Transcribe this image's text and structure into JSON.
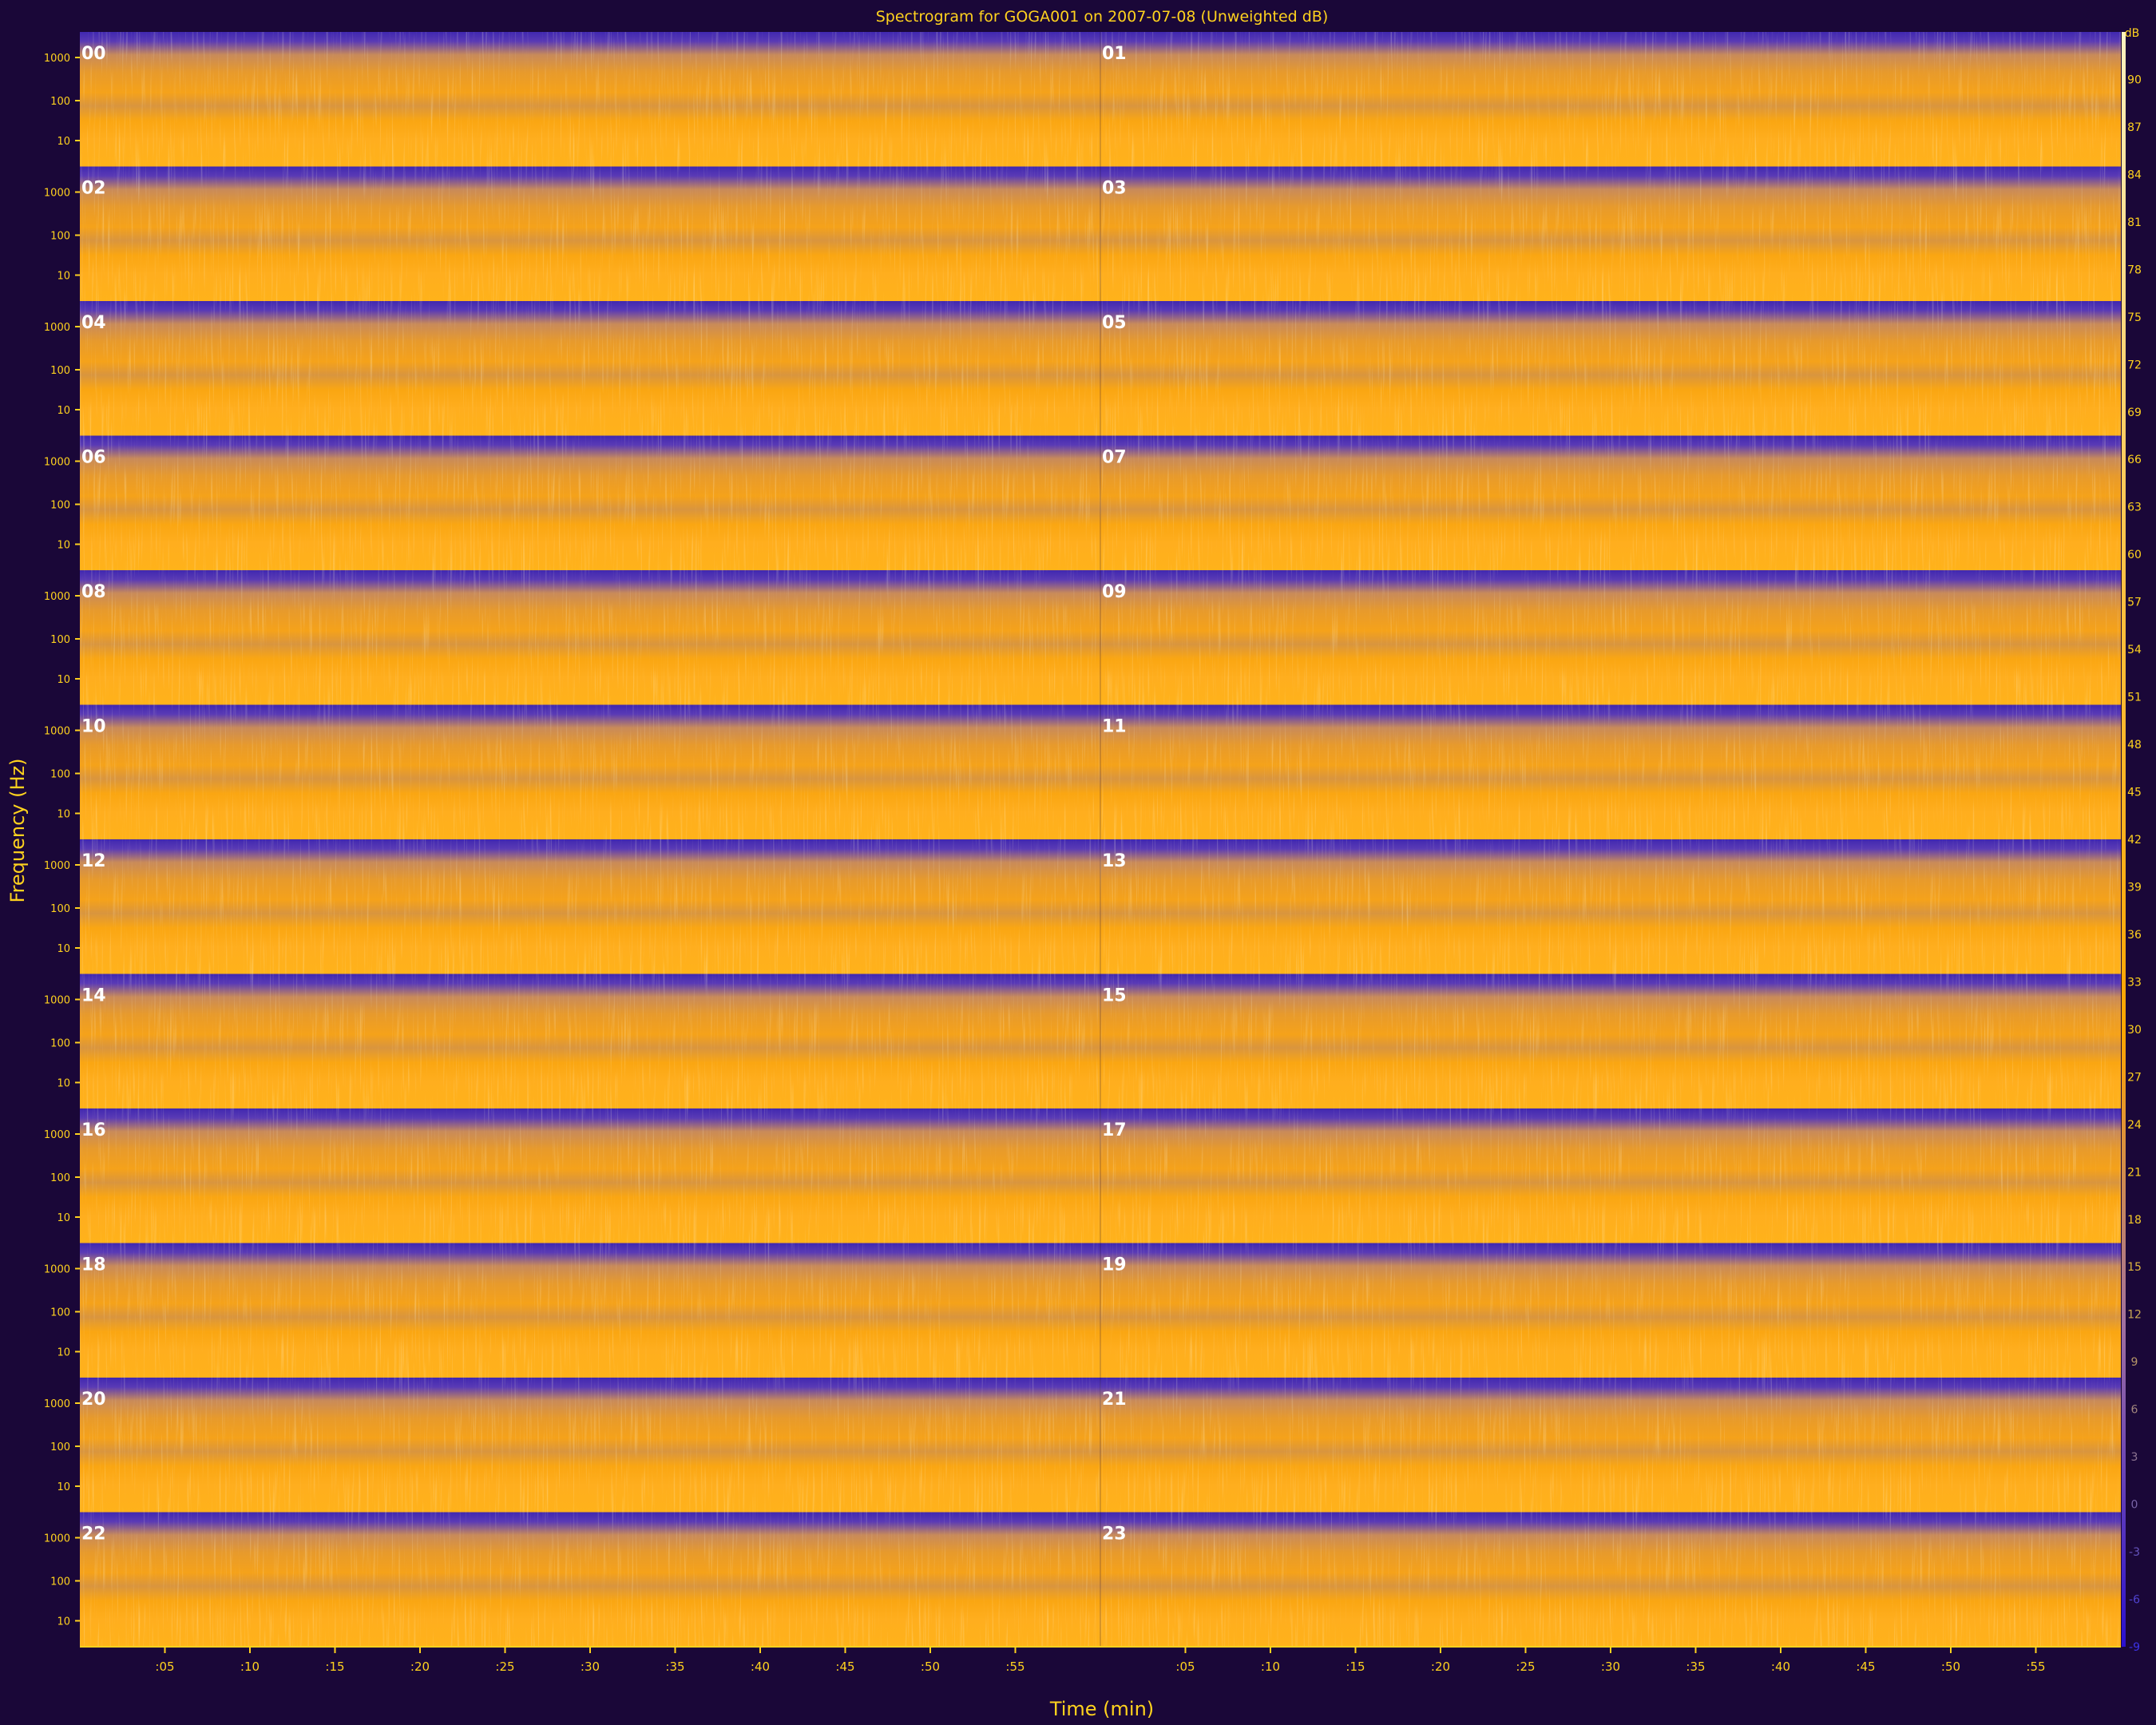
{
  "chart_data": {
    "type": "heatmap",
    "title": "Spectrogram for GOGA001 on 2007-07-08 (Unweighted dB)",
    "xlabel": "Time (min)",
    "ylabel": "Frequency (Hz)",
    "colorbar_label": "dB",
    "colorbar_range": [
      -9,
      93
    ],
    "colorbar_ticks": [
      "90",
      "87",
      "84",
      "81",
      "78",
      "75",
      "72",
      "69",
      "66",
      "63",
      "60",
      "57",
      "54",
      "51",
      "48",
      "45",
      "42",
      "39",
      "36",
      "33",
      "30",
      "27",
      "24",
      "21",
      "18",
      "15",
      "12",
      "9",
      "6",
      "3",
      "0",
      "-3",
      "-6",
      "-9"
    ],
    "x_tick_labels": [
      ":05",
      ":10",
      ":15",
      ":20",
      ":25",
      ":30",
      ":35",
      ":40",
      ":45",
      ":50",
      ":55"
    ],
    "y_tick_labels": [
      "1000",
      "100",
      "10"
    ],
    "hours": [
      "00",
      "01",
      "02",
      "03",
      "04",
      "05",
      "06",
      "07",
      "08",
      "09",
      "10",
      "11",
      "12",
      "13",
      "14",
      "15",
      "16",
      "17",
      "18",
      "19",
      "20",
      "21",
      "22",
      "23"
    ],
    "colors": {
      "background": "#1a0738",
      "text": "#ffd21e",
      "high": "#ffa500",
      "low": "#4b2fb0",
      "bright": "#ffe08a"
    }
  }
}
